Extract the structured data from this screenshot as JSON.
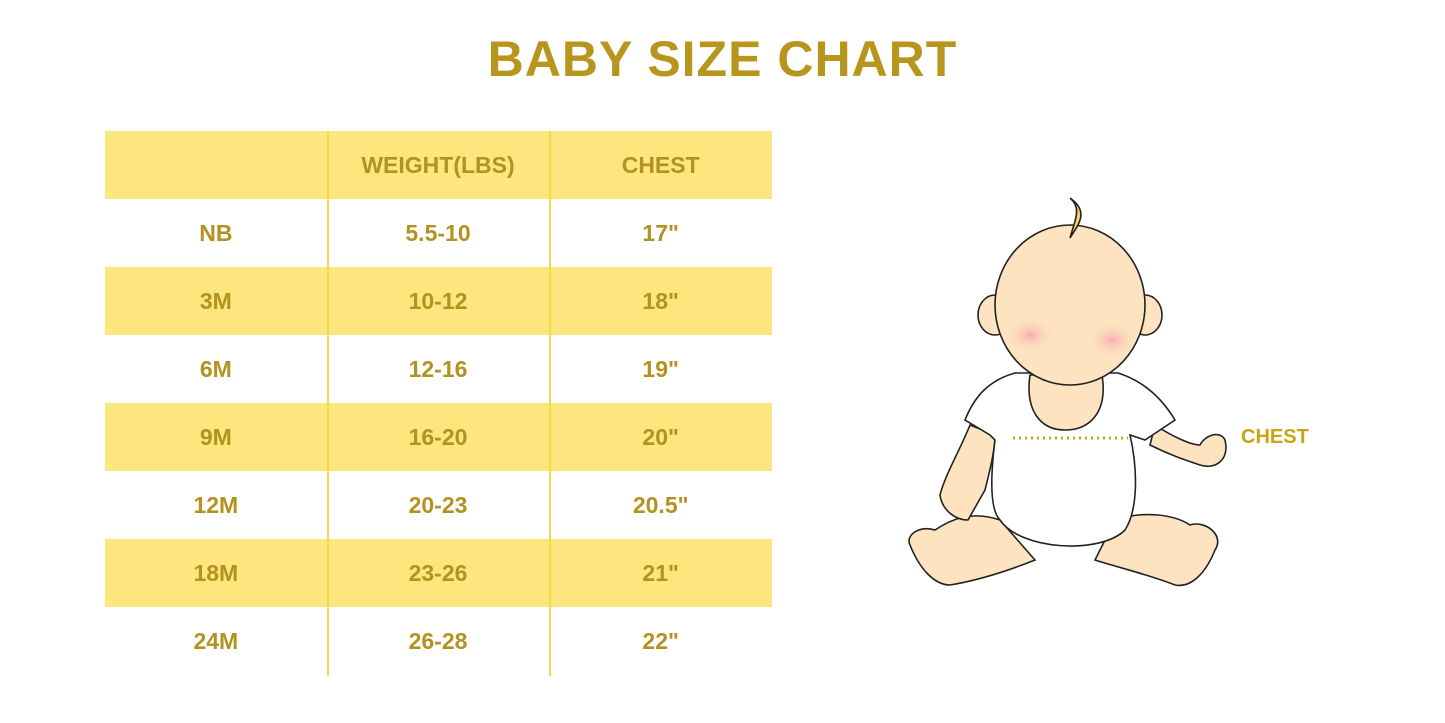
{
  "title": "BABY SIZE CHART",
  "table": {
    "headers": [
      "",
      "WEIGHT(LBS)",
      "CHEST"
    ],
    "rows": [
      [
        "NB",
        "5.5-10",
        "17\""
      ],
      [
        "3M",
        "10-12",
        "18\""
      ],
      [
        "6M",
        "12-16",
        "19\""
      ],
      [
        "9M",
        "16-20",
        "20\""
      ],
      [
        "12M",
        "20-23",
        "20.5\""
      ],
      [
        "18M",
        "23-26",
        "21\""
      ],
      [
        "24M",
        "26-28",
        "22\""
      ]
    ]
  },
  "illustration": {
    "chest_label": "CHEST"
  },
  "colors": {
    "text": "#b3921f",
    "stripe": "#fce67d",
    "divider": "#f7d84a"
  }
}
